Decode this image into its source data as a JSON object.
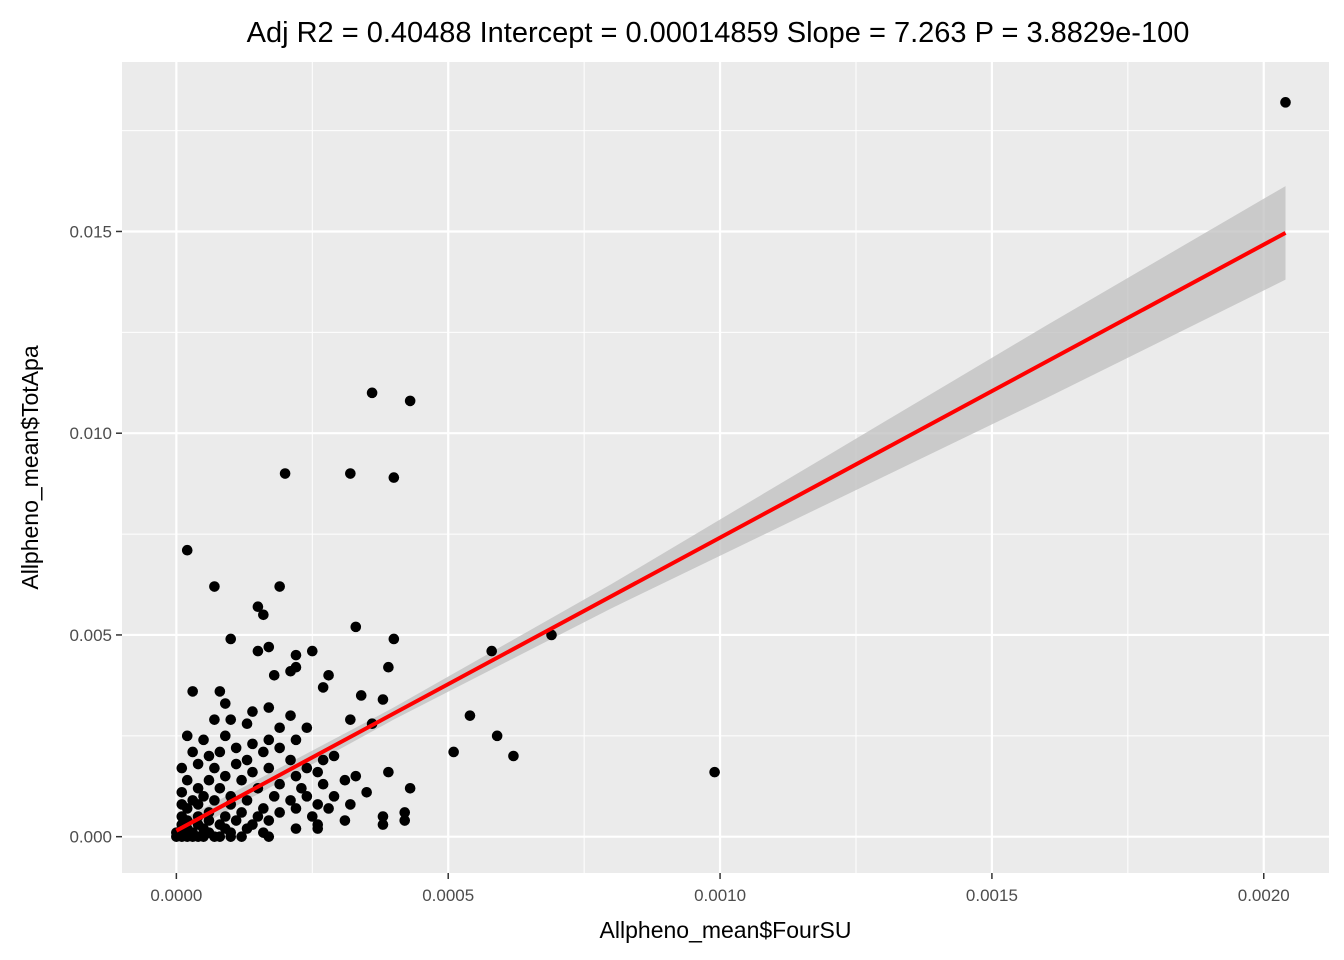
{
  "chart_data": {
    "type": "scatter",
    "title": "Adj R2 =  0.40488 Intercept = 0.00014859  Slope = 7.263  P = 3.8829e-100",
    "xlabel": "Allpheno_mean$FourSU",
    "ylabel": "Allpheno_mean$TotApa",
    "xlim": [
      -0.0001,
      0.00212
    ],
    "ylim": [
      -0.0009,
      0.0192
    ],
    "x_ticks": [
      0,
      0.0005,
      0.001,
      0.0015,
      0.002
    ],
    "x_tick_labels": [
      "0.0000",
      "0.0005",
      "0.0010",
      "0.0015",
      "0.0020"
    ],
    "y_ticks": [
      0,
      0.005,
      0.01,
      0.015
    ],
    "y_tick_labels": [
      "0.000",
      "0.005",
      "0.010",
      "0.015"
    ],
    "grid": true,
    "colors": {
      "panel": "#ebebeb",
      "grid": "#ffffff",
      "points": "#000000",
      "fit_line": "#ff0000",
      "confidence_band": "#bfbfbf"
    },
    "fit": {
      "intercept": 0.00014859,
      "slope": 7.263,
      "x_range": [
        0.0,
        0.00204
      ],
      "band_halfwidth_at_x": [
        [
          0.0,
          0.0002
        ],
        [
          0.0004,
          0.00015
        ],
        [
          0.0008,
          0.0003
        ],
        [
          0.0012,
          0.0006
        ],
        [
          0.0016,
          0.0009
        ],
        [
          0.00204,
          0.00116
        ]
      ]
    },
    "points": [
      [
        0.00204,
        0.0182
      ],
      [
        0.00036,
        0.011
      ],
      [
        0.00043,
        0.0108
      ],
      [
        0.0002,
        0.009
      ],
      [
        0.00032,
        0.009
      ],
      [
        0.0004,
        0.0089
      ],
      [
        2e-05,
        0.0071
      ],
      [
        7e-05,
        0.0062
      ],
      [
        0.00019,
        0.0062
      ],
      [
        0.00015,
        0.0057
      ],
      [
        0.00016,
        0.0055
      ],
      [
        0.00033,
        0.0052
      ],
      [
        0.0001,
        0.0049
      ],
      [
        0.0004,
        0.0049
      ],
      [
        0.00069,
        0.005
      ],
      [
        0.00017,
        0.0047
      ],
      [
        0.00015,
        0.0046
      ],
      [
        0.00025,
        0.0046
      ],
      [
        0.00058,
        0.0046
      ],
      [
        0.00022,
        0.0045
      ],
      [
        0.00022,
        0.0042
      ],
      [
        0.00021,
        0.0041
      ],
      [
        0.00039,
        0.0042
      ],
      [
        0.00018,
        0.004
      ],
      [
        0.00028,
        0.004
      ],
      [
        0.00027,
        0.0037
      ],
      [
        3e-05,
        0.0036
      ],
      [
        8e-05,
        0.0036
      ],
      [
        0.00034,
        0.0035
      ],
      [
        9e-05,
        0.0033
      ],
      [
        0.00038,
        0.0034
      ],
      [
        0.00017,
        0.0032
      ],
      [
        0.00054,
        0.003
      ],
      [
        0.00014,
        0.0031
      ],
      [
        0.00021,
        0.003
      ],
      [
        0.00032,
        0.0029
      ],
      [
        7e-05,
        0.0029
      ],
      [
        0.0001,
        0.0029
      ],
      [
        0.00013,
        0.0028
      ],
      [
        0.00019,
        0.0027
      ],
      [
        0.00024,
        0.0027
      ],
      [
        0.00036,
        0.0028
      ],
      [
        2e-05,
        0.0025
      ],
      [
        5e-05,
        0.0024
      ],
      [
        9e-05,
        0.0025
      ],
      [
        0.00017,
        0.0024
      ],
      [
        0.00022,
        0.0024
      ],
      [
        0.00059,
        0.0025
      ],
      [
        0.00014,
        0.0023
      ],
      [
        0.00019,
        0.0022
      ],
      [
        0.00011,
        0.0022
      ],
      [
        3e-05,
        0.0021
      ],
      [
        8e-05,
        0.0021
      ],
      [
        0.00016,
        0.0021
      ],
      [
        0.00051,
        0.0021
      ],
      [
        0.00062,
        0.002
      ],
      [
        6e-05,
        0.002
      ],
      [
        0.00013,
        0.0019
      ],
      [
        0.00021,
        0.0019
      ],
      [
        0.00027,
        0.0019
      ],
      [
        0.00029,
        0.002
      ],
      [
        1e-05,
        0.0017
      ],
      [
        4e-05,
        0.0018
      ],
      [
        7e-05,
        0.0017
      ],
      [
        0.00011,
        0.0018
      ],
      [
        0.00017,
        0.0017
      ],
      [
        0.00024,
        0.0017
      ],
      [
        0.00014,
        0.0016
      ],
      [
        9e-05,
        0.0015
      ],
      [
        0.00022,
        0.0015
      ],
      [
        0.00026,
        0.0016
      ],
      [
        0.00033,
        0.0015
      ],
      [
        0.00039,
        0.0016
      ],
      [
        0.00099,
        0.0016
      ],
      [
        2e-05,
        0.0014
      ],
      [
        6e-05,
        0.0014
      ],
      [
        0.00012,
        0.0014
      ],
      [
        0.00019,
        0.0013
      ],
      [
        0.00027,
        0.0013
      ],
      [
        0.00031,
        0.0014
      ],
      [
        4e-05,
        0.0012
      ],
      [
        8e-05,
        0.0012
      ],
      [
        0.00015,
        0.0012
      ],
      [
        0.00023,
        0.0012
      ],
      [
        0.00035,
        0.0011
      ],
      [
        0.00043,
        0.0012
      ],
      [
        1e-05,
        0.0011
      ],
      [
        5e-05,
        0.001
      ],
      [
        0.0001,
        0.001
      ],
      [
        0.00018,
        0.001
      ],
      [
        0.00024,
        0.001
      ],
      [
        0.00029,
        0.001
      ],
      [
        3e-05,
        0.0009
      ],
      [
        7e-05,
        0.0009
      ],
      [
        0.00013,
        0.0009
      ],
      [
        0.00021,
        0.0009
      ],
      [
        0.00026,
        0.0008
      ],
      [
        0.00032,
        0.0008
      ],
      [
        1e-05,
        0.0008
      ],
      [
        4e-05,
        0.0008
      ],
      [
        0.0001,
        0.0008
      ],
      [
        0.00016,
        0.0007
      ],
      [
        0.00022,
        0.0007
      ],
      [
        0.00028,
        0.0007
      ],
      [
        2e-05,
        0.0007
      ],
      [
        6e-05,
        0.0006
      ],
      [
        0.00012,
        0.0006
      ],
      [
        0.00019,
        0.0006
      ],
      [
        0.00042,
        0.0006
      ],
      [
        1e-05,
        0.0005
      ],
      [
        4e-05,
        0.0005
      ],
      [
        9e-05,
        0.0005
      ],
      [
        0.00015,
        0.0005
      ],
      [
        0.00025,
        0.0005
      ],
      [
        0.00038,
        0.0005
      ],
      [
        2e-05,
        0.0004
      ],
      [
        6e-05,
        0.0004
      ],
      [
        0.00011,
        0.0004
      ],
      [
        0.00017,
        0.0004
      ],
      [
        0.00031,
        0.0004
      ],
      [
        0.00042,
        0.0004
      ],
      [
        1e-05,
        0.0003
      ],
      [
        4e-05,
        0.0003
      ],
      [
        8e-05,
        0.0003
      ],
      [
        0.00014,
        0.0003
      ],
      [
        0.00026,
        0.0003
      ],
      [
        0.00038,
        0.0003
      ],
      [
        2e-05,
        0.0002
      ],
      [
        5e-05,
        0.0002
      ],
      [
        9e-05,
        0.0002
      ],
      [
        0.00013,
        0.0002
      ],
      [
        0.00022,
        0.0002
      ],
      [
        0.00026,
        0.0002
      ],
      [
        1e-05,
        0.0001
      ],
      [
        3e-05,
        0.0001
      ],
      [
        6e-05,
        0.0001
      ],
      [
        0.0001,
        0.0001
      ],
      [
        0.00016,
        0.0001
      ],
      [
        0.0,
        0.0001
      ],
      [
        2e-05,
        0.0
      ],
      [
        4e-05,
        0.0
      ],
      [
        7e-05,
        0.0
      ],
      [
        0.0001,
        0.0
      ],
      [
        0.00012,
        0.0
      ],
      [
        0.00017,
        0.0
      ],
      [
        0.0,
        0.0
      ],
      [
        1e-05,
        0.0
      ],
      [
        3e-05,
        0.0
      ],
      [
        5e-05,
        0.0
      ],
      [
        8e-05,
        0.0
      ]
    ]
  }
}
